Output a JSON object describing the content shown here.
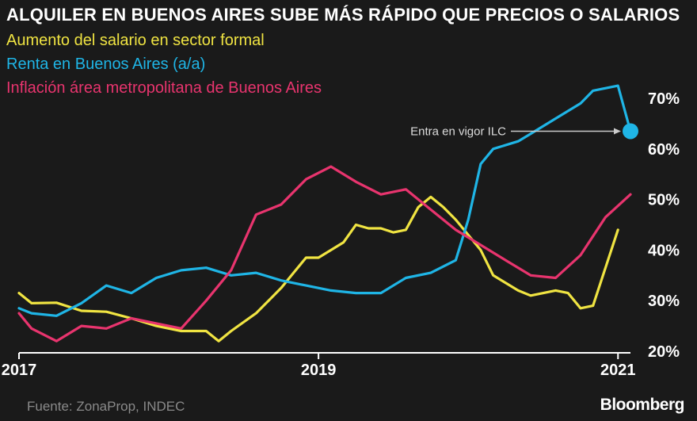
{
  "chart_data": {
    "type": "line",
    "title": "ALQUILER EN BUENOS AIRES SUBE MÁS RÁPIDO QUE PRECIOS O SALARIOS",
    "x_ticks": [
      "2017",
      "2019",
      "2021"
    ],
    "y_ticks": [
      "20%",
      "30%",
      "40%",
      "50%",
      "60%",
      "70%"
    ],
    "ylim": [
      20,
      75
    ],
    "xlim": [
      "2017-01",
      "2021-02"
    ],
    "grid": false,
    "y_axis_side": "right",
    "legend_placement": "top-left",
    "series": [
      {
        "name": "Aumento del salario en sector formal",
        "color": "#f0e442",
        "x": [
          "2017-01",
          "2017-02",
          "2017-04",
          "2017-06",
          "2017-08",
          "2017-10",
          "2017-12",
          "2018-02",
          "2018-04",
          "2018-05",
          "2018-06",
          "2018-08",
          "2018-09",
          "2018-10",
          "2018-11",
          "2018-12",
          "2019-01",
          "2019-03",
          "2019-04",
          "2019-05",
          "2019-06",
          "2019-07",
          "2019-08",
          "2019-09",
          "2019-10",
          "2019-11",
          "2019-12",
          "2020-02",
          "2020-03",
          "2020-05",
          "2020-06",
          "2020-08",
          "2020-09",
          "2020-10",
          "2020-11",
          "2021-01"
        ],
        "values": [
          31.5,
          29.5,
          29.6,
          28,
          27.8,
          26.5,
          25,
          24,
          24,
          22,
          24,
          27.5,
          30,
          32.5,
          35.5,
          38.5,
          38.5,
          41.5,
          45,
          44.3,
          44.3,
          43.5,
          44,
          48.5,
          50.5,
          48.5,
          46,
          40,
          35,
          32,
          31,
          32,
          31.5,
          28.5,
          29,
          44
        ]
      },
      {
        "name": "Renta en Buenos Aires (a/a)",
        "color": "#1fb5e6",
        "x": [
          "2017-01",
          "2017-02",
          "2017-04",
          "2017-06",
          "2017-08",
          "2017-10",
          "2017-12",
          "2018-02",
          "2018-04",
          "2018-06",
          "2018-08",
          "2018-10",
          "2018-12",
          "2019-02",
          "2019-04",
          "2019-06",
          "2019-08",
          "2019-10",
          "2019-12",
          "2020-01",
          "2020-02",
          "2020-03",
          "2020-05",
          "2020-06",
          "2020-08",
          "2020-10",
          "2020-11",
          "2021-01",
          "2021-02"
        ],
        "values": [
          28.5,
          27.5,
          27,
          29.5,
          33,
          31.5,
          34.5,
          36,
          36.5,
          35,
          35.5,
          34,
          33,
          32,
          31.5,
          31.5,
          34.5,
          35.5,
          38,
          46,
          57,
          60,
          61.5,
          63,
          66,
          69,
          71.5,
          72.5,
          63.5
        ]
      },
      {
        "name": "Inflación área metropolitana de Buenos Aires",
        "color": "#e8346e",
        "x": [
          "2017-01",
          "2017-02",
          "2017-04",
          "2017-06",
          "2017-08",
          "2017-10",
          "2017-12",
          "2018-02",
          "2018-04",
          "2018-06",
          "2018-08",
          "2018-10",
          "2018-12",
          "2019-02",
          "2019-04",
          "2019-06",
          "2019-08",
          "2019-10",
          "2019-12",
          "2020-02",
          "2020-04",
          "2020-06",
          "2020-08",
          "2020-10",
          "2020-12",
          "2021-02"
        ],
        "values": [
          27.5,
          24.5,
          22,
          25,
          24.5,
          26.5,
          25.5,
          24.5,
          30,
          36,
          47,
          49,
          54,
          56.5,
          53.5,
          51,
          52,
          48,
          44,
          41,
          38,
          35,
          34.5,
          39,
          46.5,
          51
        ]
      }
    ],
    "annotations": [
      {
        "text": "Entra en vigor ILC",
        "x": "2021-02",
        "y": 63.5
      }
    ]
  },
  "source": "Fuente: ZonaProp, INDEC",
  "brand": "Bloomberg",
  "colors": {
    "background": "#1a1a1a",
    "text": "#ffffff",
    "axis": "#ffffff",
    "source_text": "#8a8a8a",
    "annotation": "#dddddd"
  }
}
